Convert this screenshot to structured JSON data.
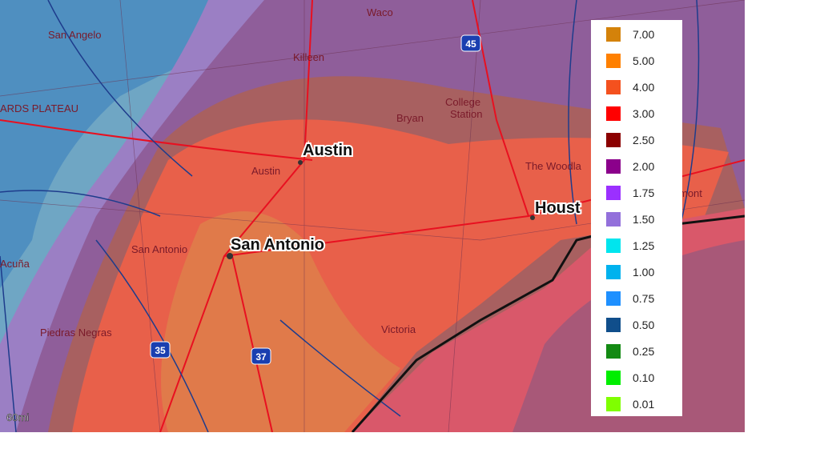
{
  "map": {
    "city_labels": [
      "Austin",
      "San Antonio",
      "Houst"
    ],
    "base_labels": [
      "San Angelo",
      "Waco",
      "Killeen",
      "College",
      "Station",
      "Bryan",
      "Austin",
      "San Antonio",
      "The Woodla",
      "Victoria",
      "Piedras Negras",
      "Acuña",
      "mont",
      "ARDS PLATEAU"
    ],
    "highways": [
      "45",
      "35",
      "37"
    ],
    "scale": "60mi",
    "legend": [
      {
        "label": "7.00",
        "color": "#d4820a"
      },
      {
        "label": "5.00",
        "color": "#ff8000"
      },
      {
        "label": "4.00",
        "color": "#f4511e"
      },
      {
        "label": "3.00",
        "color": "#ff0000"
      },
      {
        "label": "2.50",
        "color": "#8b0000"
      },
      {
        "label": "2.00",
        "color": "#8b008b"
      },
      {
        "label": "1.75",
        "color": "#9b30ff"
      },
      {
        "label": "1.50",
        "color": "#9370db"
      },
      {
        "label": "1.25",
        "color": "#00e5ee"
      },
      {
        "label": "1.00",
        "color": "#00b2ee"
      },
      {
        "label": "0.75",
        "color": "#1e90ff"
      },
      {
        "label": "0.50",
        "color": "#104e8b"
      },
      {
        "label": "0.25",
        "color": "#138a13"
      },
      {
        "label": "0.10",
        "color": "#00ee00"
      },
      {
        "label": "0.01",
        "color": "#7fff00"
      }
    ]
  }
}
